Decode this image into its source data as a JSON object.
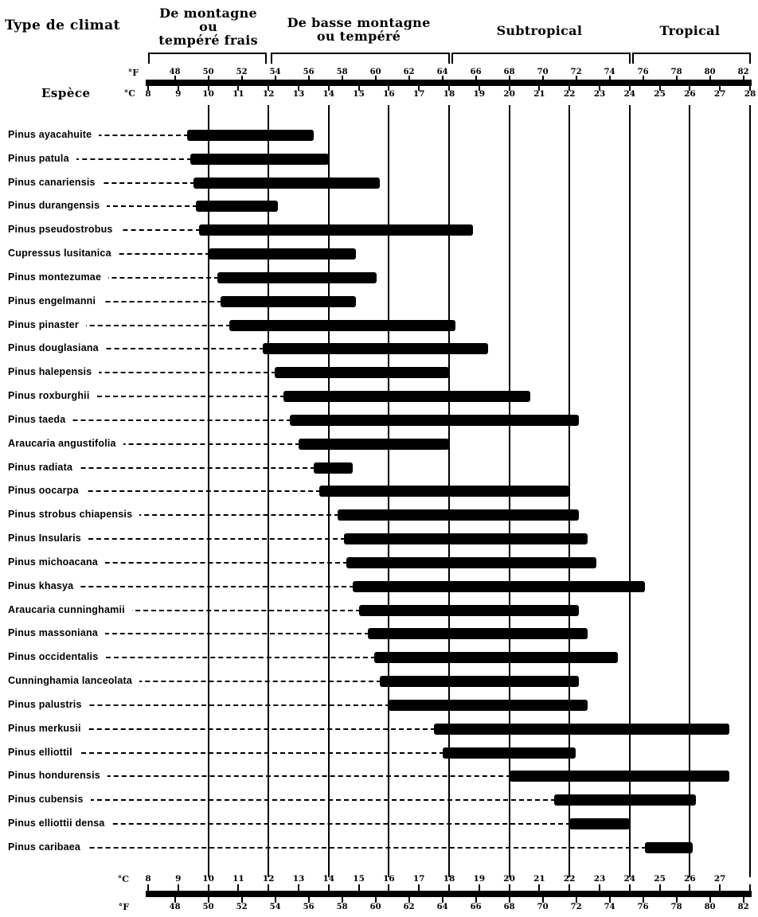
{
  "page": {
    "corner_title": "Type de climat",
    "species_axis_title": "Espèce",
    "units": {
      "fahrenheit": "°F",
      "celsius": "°C"
    },
    "climate_zones": [
      {
        "label_lines": [
          "De montagne",
          "ou",
          "tempéré frais"
        ],
        "c_start": 8,
        "c_end": 12
      },
      {
        "label_lines": [
          "De basse montagne",
          "ou tempéré"
        ],
        "c_start": 12,
        "c_end": 18
      },
      {
        "label_lines": [
          "Subtropical"
        ],
        "c_start": 18,
        "c_end": 24
      },
      {
        "label_lines": [
          "Tropical"
        ],
        "c_start": 24,
        "c_end": 28
      }
    ]
  },
  "chart_data": {
    "type": "bar",
    "orientation": "horizontal-range",
    "title": "Temperature ranges of species by climate type",
    "x_axis": {
      "celsius": {
        "label": "°C",
        "min": 8,
        "max": 28,
        "top_ticks": [
          8,
          9,
          10,
          11,
          12,
          13,
          14,
          15,
          16,
          17,
          18,
          19,
          20,
          21,
          22,
          23,
          24,
          25,
          26,
          27,
          28
        ],
        "bottom_ticks": [
          8,
          9,
          10,
          11,
          12,
          13,
          14,
          15,
          16,
          17,
          18,
          19,
          20,
          21,
          22,
          23,
          24,
          25,
          26,
          27
        ]
      },
      "fahrenheit": {
        "label": "°F",
        "ticks": [
          48,
          50,
          52,
          54,
          56,
          58,
          60,
          62,
          64,
          66,
          68,
          70,
          72,
          74,
          76,
          78,
          80,
          82
        ]
      }
    },
    "gridlines_c": [
      10,
      12,
      14,
      16,
      18,
      20,
      22,
      24,
      26,
      28
    ],
    "series": [
      {
        "name": "Pinus ayacahuite",
        "min_c": 9.3,
        "max_c": 13.5
      },
      {
        "name": "Pinus patula",
        "min_c": 9.4,
        "max_c": 14.0
      },
      {
        "name": "Pinus canariensis",
        "min_c": 9.5,
        "max_c": 15.7
      },
      {
        "name": "Pinus durangensis",
        "min_c": 9.6,
        "max_c": 12.3
      },
      {
        "name": "Pinus pseudostrobus",
        "min_c": 9.7,
        "max_c": 18.8
      },
      {
        "name": "Cupressus lusitanica",
        "min_c": 10.0,
        "max_c": 14.9
      },
      {
        "name": "Pinus montezumae",
        "min_c": 10.3,
        "max_c": 15.6
      },
      {
        "name": "Pinus engelmanni",
        "min_c": 10.4,
        "max_c": 14.9
      },
      {
        "name": "Pinus pinaster",
        "min_c": 10.7,
        "max_c": 18.2
      },
      {
        "name": "Pinus douglasiana",
        "min_c": 11.8,
        "max_c": 19.3
      },
      {
        "name": "Pinus halepensis",
        "min_c": 12.2,
        "max_c": 18.0
      },
      {
        "name": "Pinus roxburghii",
        "min_c": 12.5,
        "max_c": 20.7
      },
      {
        "name": "Pinus taeda",
        "min_c": 12.7,
        "max_c": 22.3
      },
      {
        "name": "Araucaria angustifolia",
        "min_c": 13.0,
        "max_c": 18.0
      },
      {
        "name": "Pinus radiata",
        "min_c": 13.5,
        "max_c": 14.8
      },
      {
        "name": "Pinus oocarpa",
        "min_c": 13.7,
        "max_c": 22.0
      },
      {
        "name": "Pinus strobus chiapensis",
        "min_c": 14.3,
        "max_c": 22.3
      },
      {
        "name": "Pinus Insularis",
        "min_c": 14.5,
        "max_c": 22.6
      },
      {
        "name": "Pinus michoacana",
        "min_c": 14.6,
        "max_c": 22.9
      },
      {
        "name": "Pinus khasya",
        "min_c": 14.8,
        "max_c": 24.5
      },
      {
        "name": "Araucaria cunninghamii",
        "min_c": 15.0,
        "max_c": 22.3
      },
      {
        "name": "Pinus massoniana",
        "min_c": 15.3,
        "max_c": 22.6
      },
      {
        "name": "Pinus occidentalis",
        "min_c": 15.5,
        "max_c": 23.6
      },
      {
        "name": "Cunninghamia lanceolata",
        "min_c": 15.7,
        "max_c": 22.3
      },
      {
        "name": "Pinus palustris",
        "min_c": 16.0,
        "max_c": 22.6
      },
      {
        "name": "Pinus merkusii",
        "min_c": 17.5,
        "max_c": 27.3
      },
      {
        "name": "Pinus elliottil",
        "min_c": 17.8,
        "max_c": 22.2
      },
      {
        "name": "Pinus hondurensis",
        "min_c": 20.0,
        "max_c": 27.3
      },
      {
        "name": "Pinus cubensis",
        "min_c": 21.5,
        "max_c": 26.2
      },
      {
        "name": "Pinus elliottii densa",
        "min_c": 22.0,
        "max_c": 24.0
      },
      {
        "name": "Pinus caribaea",
        "min_c": 24.5,
        "max_c": 26.1
      }
    ],
    "bar_color": "#000000",
    "background_color": "#ffffff",
    "legend": "none",
    "grid": "vertical-at-even-celsius"
  }
}
